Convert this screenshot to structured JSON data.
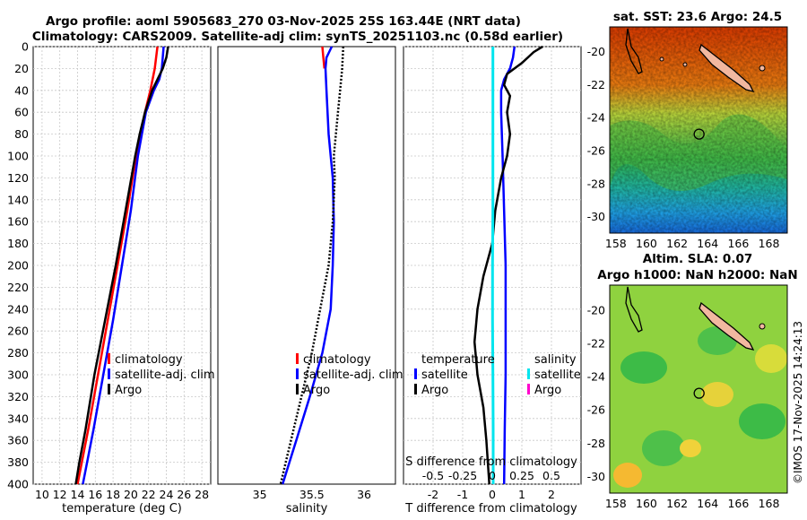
{
  "header": {
    "title_line1": "Argo profile: aoml 5905683_270 03-Nov-2025 25S 163.44E (NRT data)",
    "title_line2": "Climatology: CARS2009. Satellite-adj clim: synTS_20251103.nc (0.58d earlier)"
  },
  "footer": {
    "stamp": "©IMOS 17-Nov-2025 14:24:13"
  },
  "colors": {
    "climatology": "#ff0000",
    "satellite": "#0000ff",
    "argo": "#000000",
    "sal_satellite": "#00e5ee",
    "sal_argo": "#ff00cc"
  },
  "chart_data": [
    {
      "type": "line",
      "id": "temperature-profile",
      "xlabel": "temperature (deg C)",
      "ylabel": "",
      "xlim": [
        9,
        29
      ],
      "ylim": [
        400,
        0
      ],
      "xticks": [
        10,
        12,
        14,
        16,
        18,
        20,
        22,
        24,
        26,
        28
      ],
      "yticks": [
        0,
        20,
        40,
        60,
        80,
        100,
        120,
        140,
        160,
        180,
        200,
        220,
        240,
        260,
        280,
        300,
        320,
        340,
        360,
        380,
        400
      ],
      "grid": true,
      "legend": [
        "climatology",
        "satellite-adj. clim",
        "Argo"
      ],
      "series": [
        {
          "name": "climatology",
          "color": "#ff0000",
          "depth": [
            0,
            20,
            40,
            60,
            100,
            150,
            200,
            250,
            300,
            350,
            400
          ],
          "values": [
            23.0,
            22.7,
            22.2,
            21.6,
            20.6,
            19.6,
            18.5,
            17.4,
            16.3,
            15.2,
            14.0
          ]
        },
        {
          "name": "satellite-adj. clim",
          "color": "#0000ff",
          "depth": [
            0,
            20,
            30,
            40,
            60,
            100,
            150,
            200,
            250,
            300,
            350,
            400
          ],
          "values": [
            23.7,
            23.5,
            23.2,
            22.6,
            21.7,
            20.8,
            20.0,
            19.0,
            18.0,
            16.9,
            15.8,
            14.6
          ]
        },
        {
          "name": "Argo",
          "color": "#000000",
          "depth": [
            0,
            10,
            20,
            30,
            40,
            60,
            80,
            100,
            150,
            200,
            250,
            300,
            350,
            380,
            400
          ],
          "values": [
            24.2,
            24.0,
            23.6,
            23.0,
            22.4,
            21.6,
            21.0,
            20.5,
            19.4,
            18.3,
            17.1,
            15.9,
            14.9,
            14.2,
            13.8
          ]
        }
      ]
    },
    {
      "type": "line",
      "id": "salinity-profile",
      "xlabel": "salinity",
      "xlim": [
        34.6,
        36.3
      ],
      "ylim": [
        400,
        0
      ],
      "xticks": [
        35,
        35.5,
        36
      ],
      "grid": false,
      "legend": [
        "climatology",
        "satellite-adj. clim",
        "Argo"
      ],
      "series": [
        {
          "name": "climatology",
          "color": "#ff0000",
          "depth": [
            0,
            10,
            20
          ],
          "values": [
            35.6,
            35.61,
            35.62
          ]
        },
        {
          "name": "satellite-adj. clim",
          "color": "#0000ff",
          "depth": [
            0,
            10,
            20,
            40,
            80,
            120,
            160,
            200,
            240,
            280,
            320,
            360,
            400
          ],
          "values": [
            35.69,
            35.64,
            35.63,
            35.64,
            35.66,
            35.7,
            35.71,
            35.7,
            35.68,
            35.6,
            35.48,
            35.35,
            35.22
          ]
        },
        {
          "name": "Argo",
          "color": "#000000",
          "style": "dotted",
          "depth": [
            0,
            20,
            40,
            60,
            80,
            100,
            120,
            160,
            200,
            240,
            280,
            320,
            360,
            400
          ],
          "values": [
            35.8,
            35.79,
            35.77,
            35.75,
            35.73,
            35.71,
            35.72,
            35.7,
            35.66,
            35.58,
            35.5,
            35.4,
            35.3,
            35.2
          ]
        }
      ]
    },
    {
      "type": "line",
      "id": "difference-profile",
      "xlabel": "T difference from climatology",
      "xlabel_top": "S difference from climatology",
      "xlim": [
        -3,
        3
      ],
      "ylim": [
        400,
        0
      ],
      "xticks": [
        -2,
        -1,
        0,
        1,
        2
      ],
      "xticks_top": [
        "-0.5",
        "-0.25",
        "0",
        "0.25",
        "0.5"
      ],
      "grid": true,
      "legend_temperature": {
        "title": "temperature",
        "items": [
          "satellite",
          "Argo"
        ]
      },
      "legend_salinity": {
        "title": "salinity",
        "items": [
          "satellite",
          "Argo"
        ]
      },
      "series": [
        {
          "name": "T satellite",
          "color": "#0000ff",
          "depth": [
            0,
            10,
            20,
            30,
            40,
            60,
            100,
            150,
            200,
            250,
            300,
            350,
            400
          ],
          "values": [
            0.75,
            0.7,
            0.6,
            0.4,
            0.3,
            0.3,
            0.35,
            0.4,
            0.45,
            0.45,
            0.45,
            0.42,
            0.4
          ]
        },
        {
          "name": "T Argo",
          "color": "#000000",
          "depth": [
            0,
            5,
            15,
            25,
            35,
            45,
            60,
            80,
            100,
            120,
            150,
            180,
            210,
            240,
            270,
            300,
            330,
            360,
            400
          ],
          "values": [
            1.7,
            1.4,
            1.0,
            0.5,
            0.4,
            0.6,
            0.5,
            0.6,
            0.5,
            0.3,
            0.1,
            0.0,
            -0.3,
            -0.5,
            -0.6,
            -0.5,
            -0.3,
            -0.2,
            -0.1
          ]
        },
        {
          "name": "S satellite",
          "color": "#00e5ee",
          "depth": [
            0,
            50,
            100,
            150,
            200,
            250,
            300,
            350,
            400
          ],
          "values": [
            0.02,
            0.02,
            0.02,
            0.02,
            0.01,
            0.01,
            0.02,
            0.03,
            0.03
          ]
        }
      ]
    },
    {
      "type": "heatmap",
      "id": "sst-map",
      "title": "sat. SST: 23.6 Argo: 24.5",
      "xlim": [
        157.6,
        169.2
      ],
      "ylim": [
        -31,
        -18.5
      ],
      "xticks": [
        158,
        160,
        162,
        164,
        166,
        168
      ],
      "yticks": [
        -20,
        -22,
        -24,
        -26,
        -28,
        -30
      ],
      "marker": {
        "lon": 163.44,
        "lat": -25
      }
    },
    {
      "type": "heatmap",
      "id": "sla-map",
      "title": "Altim. SLA: 0.07",
      "subtitle": "Argo h1000: NaN h2000: NaN",
      "xlim": [
        157.6,
        169.2
      ],
      "ylim": [
        -31,
        -18.5
      ],
      "xticks": [
        158,
        160,
        162,
        164,
        166,
        168
      ],
      "yticks": [
        -20,
        -22,
        -24,
        -26,
        -28,
        -30
      ],
      "marker": {
        "lon": 163.44,
        "lat": -25
      }
    }
  ]
}
